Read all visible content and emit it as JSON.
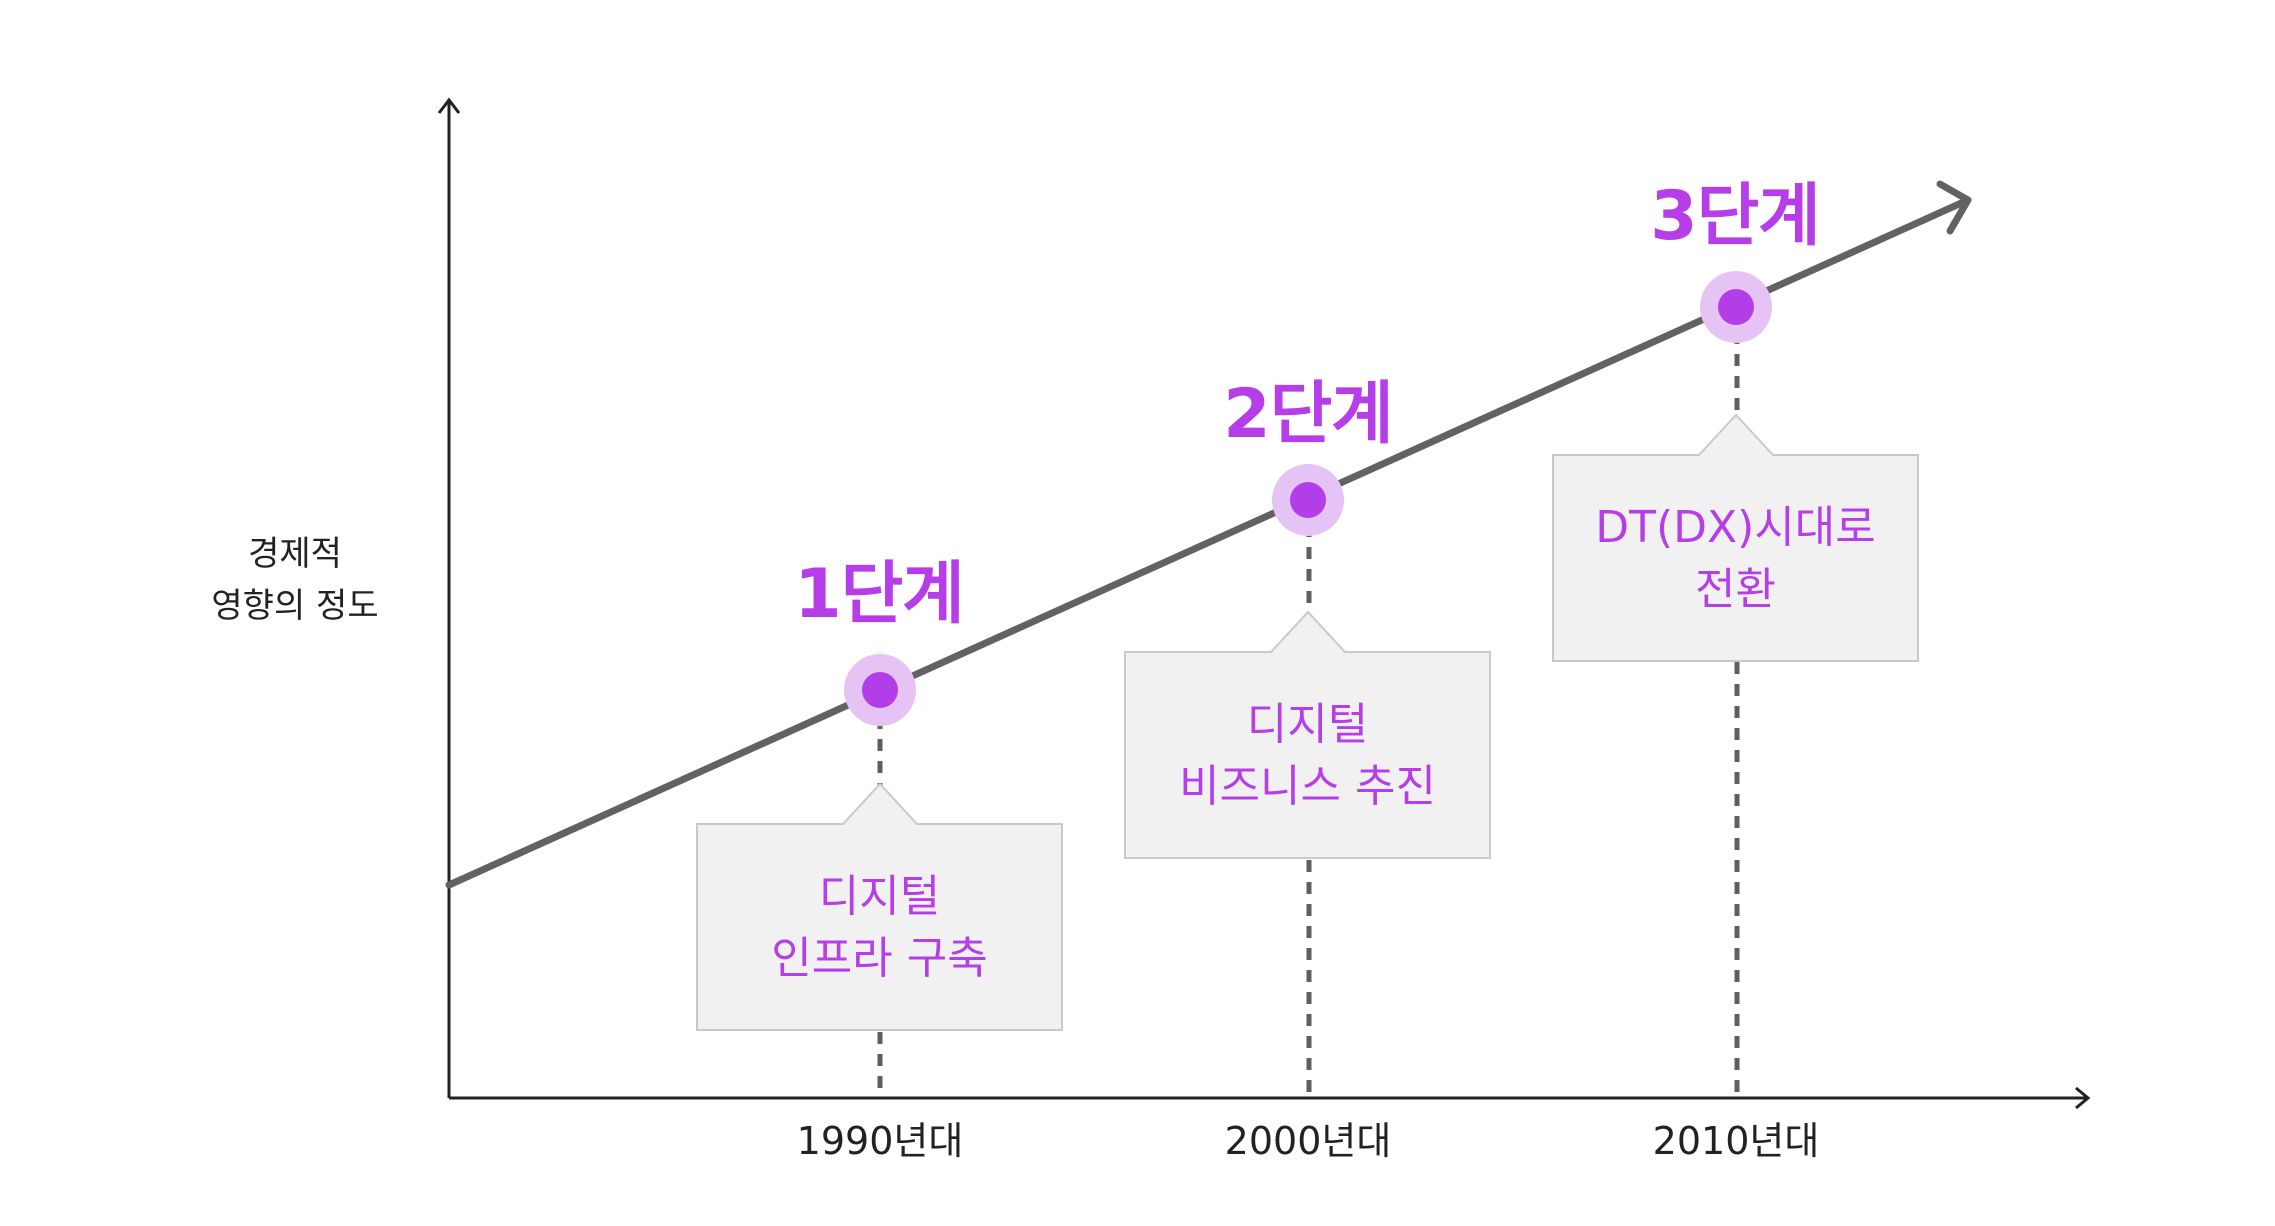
{
  "y_axis_label": [
    "경제적",
    "영향의 정도"
  ],
  "eras": [
    "1990년대",
    "2000년대",
    "2010년대"
  ],
  "stages": [
    {
      "title": "1단계",
      "lines": [
        "디지털",
        "인프라 구축"
      ]
    },
    {
      "title": "2단계",
      "lines": [
        "디지털",
        "비즈니스 추진"
      ]
    },
    {
      "title": "3단계",
      "lines": [
        "DT(DX)시대로",
        "전환"
      ]
    }
  ],
  "colors": {
    "accent": "#b63ee8",
    "marker_core": "#b23ee8",
    "marker_halo": "#e6c3f5",
    "trend_line": "#626262",
    "axis": "#222222",
    "box_fill": "#f1f1f1",
    "box_border": "#c9c9c9",
    "dash": "#5f5f5f"
  }
}
